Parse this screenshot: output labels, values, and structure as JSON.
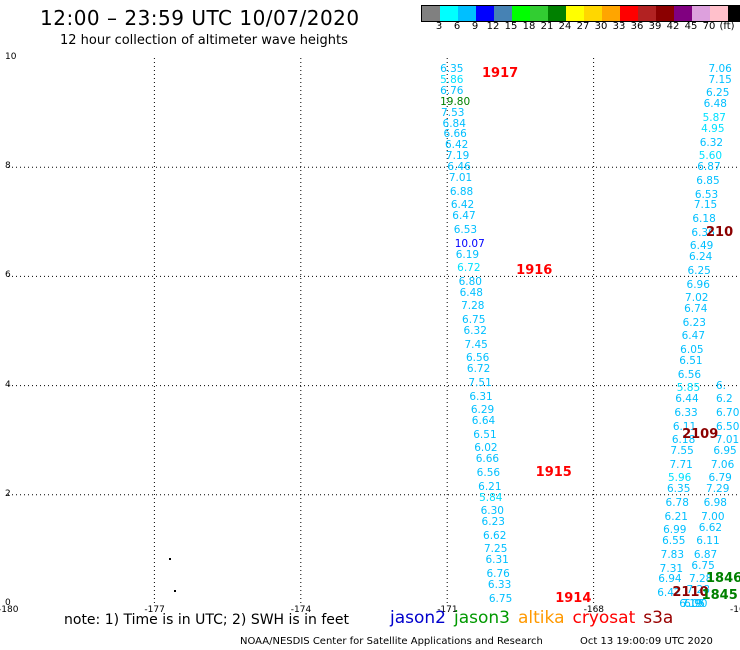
{
  "header": {
    "title": "12:00 – 23:59 UTC 10/07/2020",
    "subtitle": "12 hour collection of altimeter wave heights"
  },
  "colorbar": {
    "swatches": [
      "#808080",
      "#00ffff",
      "#00bfff",
      "#0000ff",
      "#4682b4",
      "#00ff00",
      "#32cd32",
      "#008000",
      "#ffff00",
      "#ffd700",
      "#ffa500",
      "#ff0000",
      "#b22222",
      "#8b0000",
      "#800080",
      "#dda0dd",
      "#ffc0cb",
      "#000000"
    ],
    "labels": [
      "3",
      "6",
      "9",
      "12",
      "15",
      "18",
      "21",
      "24",
      "27",
      "30",
      "33",
      "36",
      "39",
      "42",
      "45",
      "70",
      "(ft)"
    ]
  },
  "axes": {
    "x_ticks": [
      "-180",
      "-177",
      "-174",
      "-171",
      "-168",
      "-16"
    ],
    "y_ticks": [
      "10",
      "8",
      "6",
      "4",
      "2",
      "0"
    ]
  },
  "footer": {
    "note": "note:  1) Time is in UTC;  2) SWH is in feet",
    "satellites": [
      {
        "name": "jason2",
        "color": "#0000cc"
      },
      {
        "name": "jason3",
        "color": "#009900"
      },
      {
        "name": "altika",
        "color": "#ff9900"
      },
      {
        "name": "cryosat",
        "color": "#ff0000"
      },
      {
        "name": "s3a",
        "color": "#990000"
      }
    ],
    "credit": "NOAA/NESDIS Center for Satellite Applications and Research",
    "datestamp": "Oct 13 19:00:09 UTC 2020"
  },
  "colors": {
    "cyan": "#00bfff",
    "light_cyan": "#00e0ff",
    "green": "#008000",
    "blue": "#0000ff",
    "red": "#ff0000",
    "dark_red": "#8b0000"
  },
  "chart_data": {
    "type": "scatter",
    "x_label": "",
    "y_label": "",
    "xlim": [
      -180,
      -165
    ],
    "ylim": [
      0,
      10
    ],
    "tracks": [
      {
        "name": "track-1",
        "points": [
          {
            "lon": -170.9,
            "lat": 9.8,
            "v": "6.35",
            "c": "cyan"
          },
          {
            "lon": -170.9,
            "lat": 9.6,
            "v": "5.86",
            "c": "light_cyan"
          },
          {
            "lon": -170.9,
            "lat": 9.4,
            "v": "6.76",
            "c": "cyan"
          },
          {
            "lon": -170.9,
            "lat": 9.2,
            "v": "19.80",
            "c": "green"
          },
          {
            "lon": -170.88,
            "lat": 9.0,
            "v": "7.53",
            "c": "cyan"
          },
          {
            "lon": -170.85,
            "lat": 8.8,
            "v": "6.84",
            "c": "cyan"
          },
          {
            "lon": -170.83,
            "lat": 8.6,
            "v": "6.66",
            "c": "cyan"
          },
          {
            "lon": -170.8,
            "lat": 8.4,
            "v": "6.42",
            "c": "cyan"
          },
          {
            "lon": -170.78,
            "lat": 8.2,
            "v": "7.19",
            "c": "cyan"
          },
          {
            "lon": -170.75,
            "lat": 8.0,
            "v": "6.46",
            "c": "cyan"
          },
          {
            "lon": -170.72,
            "lat": 7.8,
            "v": "7.01",
            "c": "cyan"
          },
          {
            "lon": -170.7,
            "lat": 7.55,
            "v": "6.88",
            "c": "cyan"
          },
          {
            "lon": -170.68,
            "lat": 7.3,
            "v": "6.42",
            "c": "cyan"
          },
          {
            "lon": -170.65,
            "lat": 7.1,
            "v": "6.47",
            "c": "cyan"
          },
          {
            "lon": -170.62,
            "lat": 6.85,
            "v": "6.53",
            "c": "cyan"
          },
          {
            "lon": -170.6,
            "lat": 6.6,
            "v": "10.07",
            "c": "blue"
          },
          {
            "lon": -170.58,
            "lat": 6.4,
            "v": "6.19",
            "c": "cyan"
          },
          {
            "lon": -170.55,
            "lat": 6.15,
            "v": "6.72",
            "c": "light_cyan"
          },
          {
            "lon": -170.52,
            "lat": 5.9,
            "v": "6.80",
            "c": "cyan"
          },
          {
            "lon": -170.5,
            "lat": 5.7,
            "v": "6.48",
            "c": "cyan"
          },
          {
            "lon": -170.47,
            "lat": 5.45,
            "v": "7.28",
            "c": "cyan"
          },
          {
            "lon": -170.45,
            "lat": 5.2,
            "v": "6.75",
            "c": "cyan"
          },
          {
            "lon": -170.42,
            "lat": 5.0,
            "v": "6.32",
            "c": "cyan"
          },
          {
            "lon": -170.4,
            "lat": 4.75,
            "v": "7.45",
            "c": "cyan"
          },
          {
            "lon": -170.37,
            "lat": 4.5,
            "v": "6.56",
            "c": "cyan"
          },
          {
            "lon": -170.35,
            "lat": 4.3,
            "v": "6.72",
            "c": "cyan"
          },
          {
            "lon": -170.32,
            "lat": 4.05,
            "v": "7.51",
            "c": "cyan"
          },
          {
            "lon": -170.3,
            "lat": 3.8,
            "v": "6.31",
            "c": "cyan"
          },
          {
            "lon": -170.27,
            "lat": 3.55,
            "v": "6.29",
            "c": "cyan"
          },
          {
            "lon": -170.25,
            "lat": 3.35,
            "v": "6.64",
            "c": "cyan"
          },
          {
            "lon": -170.22,
            "lat": 3.1,
            "v": "6.51",
            "c": "cyan"
          },
          {
            "lon": -170.2,
            "lat": 2.85,
            "v": "6.02",
            "c": "cyan"
          },
          {
            "lon": -170.17,
            "lat": 2.65,
            "v": "6.66",
            "c": "cyan"
          },
          {
            "lon": -170.15,
            "lat": 2.4,
            "v": "6.56",
            "c": "cyan"
          },
          {
            "lon": -170.12,
            "lat": 2.15,
            "v": "6.21",
            "c": "cyan"
          },
          {
            "lon": -170.1,
            "lat": 1.95,
            "v": "5.84",
            "c": "light_cyan"
          },
          {
            "lon": -170.07,
            "lat": 1.7,
            "v": "6.30",
            "c": "cyan"
          },
          {
            "lon": -170.05,
            "lat": 1.5,
            "v": "6.23",
            "c": "cyan"
          },
          {
            "lon": -170.02,
            "lat": 1.25,
            "v": "6.62",
            "c": "cyan"
          },
          {
            "lon": -170.0,
            "lat": 1.0,
            "v": "7.25",
            "c": "cyan"
          },
          {
            "lon": -169.97,
            "lat": 0.8,
            "v": "6.31",
            "c": "cyan"
          },
          {
            "lon": -169.95,
            "lat": 0.55,
            "v": "6.76",
            "c": "cyan"
          },
          {
            "lon": -169.92,
            "lat": 0.35,
            "v": "6.33",
            "c": "cyan"
          },
          {
            "lon": -169.9,
            "lat": 0.1,
            "v": "6.75",
            "c": "cyan"
          }
        ]
      },
      {
        "name": "track-2",
        "points": [
          {
            "lon": -165.4,
            "lat": 9.8,
            "v": "7.06",
            "c": "cyan"
          },
          {
            "lon": -165.4,
            "lat": 9.6,
            "v": "7.15",
            "c": "cyan"
          },
          {
            "lon": -165.45,
            "lat": 9.35,
            "v": "6.25",
            "c": "cyan"
          },
          {
            "lon": -165.5,
            "lat": 9.15,
            "v": "6.48",
            "c": "cyan"
          },
          {
            "lon": -165.52,
            "lat": 8.9,
            "v": "5.87",
            "c": "light_cyan"
          },
          {
            "lon": -165.55,
            "lat": 8.7,
            "v": "4.95",
            "c": "light_cyan"
          },
          {
            "lon": -165.58,
            "lat": 8.45,
            "v": "6.32",
            "c": "cyan"
          },
          {
            "lon": -165.6,
            "lat": 8.2,
            "v": "5.60",
            "c": "light_cyan"
          },
          {
            "lon": -165.63,
            "lat": 8.0,
            "v": "6.87",
            "c": "cyan"
          },
          {
            "lon": -165.65,
            "lat": 7.75,
            "v": "6.85",
            "c": "cyan"
          },
          {
            "lon": -165.68,
            "lat": 7.5,
            "v": "6.53",
            "c": "cyan"
          },
          {
            "lon": -165.7,
            "lat": 7.3,
            "v": "7.15",
            "c": "cyan"
          },
          {
            "lon": -165.73,
            "lat": 7.05,
            "v": "6.18",
            "c": "cyan"
          },
          {
            "lon": -165.75,
            "lat": 6.8,
            "v": "6.36",
            "c": "cyan"
          },
          {
            "lon": -165.78,
            "lat": 6.55,
            "v": "6.49",
            "c": "cyan"
          },
          {
            "lon": -165.8,
            "lat": 6.35,
            "v": "6.24",
            "c": "cyan"
          },
          {
            "lon": -165.83,
            "lat": 6.1,
            "v": "6.25",
            "c": "cyan"
          },
          {
            "lon": -165.85,
            "lat": 5.85,
            "v": "6.96",
            "c": "cyan"
          },
          {
            "lon": -165.88,
            "lat": 5.6,
            "v": "7.02",
            "c": "cyan"
          },
          {
            "lon": -165.9,
            "lat": 5.4,
            "v": "6.74",
            "c": "cyan"
          },
          {
            "lon": -165.93,
            "lat": 5.15,
            "v": "6.23",
            "c": "cyan"
          },
          {
            "lon": -165.95,
            "lat": 4.9,
            "v": "6.47",
            "c": "cyan"
          },
          {
            "lon": -165.98,
            "lat": 4.65,
            "v": "6.05",
            "c": "cyan"
          },
          {
            "lon": -166.0,
            "lat": 4.45,
            "v": "6.51",
            "c": "cyan"
          },
          {
            "lon": -166.03,
            "lat": 4.2,
            "v": "6.56",
            "c": "cyan"
          },
          {
            "lon": -166.05,
            "lat": 3.95,
            "v": "5.85",
            "c": "light_cyan"
          },
          {
            "lon": -166.08,
            "lat": 3.75,
            "v": "6.44",
            "c": "cyan"
          },
          {
            "lon": -166.1,
            "lat": 3.5,
            "v": "6.33",
            "c": "cyan"
          },
          {
            "lon": -166.13,
            "lat": 3.25,
            "v": "6.11",
            "c": "cyan"
          },
          {
            "lon": -166.15,
            "lat": 3.0,
            "v": "6.18",
            "c": "cyan"
          },
          {
            "lon": -166.18,
            "lat": 2.8,
            "v": "7.55",
            "c": "cyan"
          },
          {
            "lon": -166.2,
            "lat": 2.55,
            "v": "7.71",
            "c": "cyan"
          },
          {
            "lon": -166.23,
            "lat": 2.3,
            "v": "5.96",
            "c": "light_cyan"
          },
          {
            "lon": -166.25,
            "lat": 2.1,
            "v": "6.35",
            "c": "cyan"
          },
          {
            "lon": -166.28,
            "lat": 1.85,
            "v": "6.78",
            "c": "cyan"
          },
          {
            "lon": -166.3,
            "lat": 1.6,
            "v": "6.21",
            "c": "cyan"
          },
          {
            "lon": -166.33,
            "lat": 1.35,
            "v": "6.99",
            "c": "cyan"
          },
          {
            "lon": -166.35,
            "lat": 1.15,
            "v": "6.55",
            "c": "cyan"
          },
          {
            "lon": -166.38,
            "lat": 0.9,
            "v": "7.83",
            "c": "cyan"
          },
          {
            "lon": -166.4,
            "lat": 0.65,
            "v": "7.31",
            "c": "cyan"
          },
          {
            "lon": -166.43,
            "lat": 0.45,
            "v": "6.94",
            "c": "cyan"
          },
          {
            "lon": -166.45,
            "lat": 0.2,
            "v": "6.42",
            "c": "cyan"
          }
        ]
      },
      {
        "name": "track-3",
        "points": [
          {
            "lon": -165.05,
            "lat": 4.0,
            "v": "6.",
            "c": "cyan"
          },
          {
            "lon": -165.1,
            "lat": 3.75,
            "v": "6.2",
            "c": "cyan"
          },
          {
            "lon": -165.15,
            "lat": 3.5,
            "v": "6.70",
            "c": "cyan"
          },
          {
            "lon": -165.2,
            "lat": 3.25,
            "v": "6.50",
            "c": "cyan"
          },
          {
            "lon": -165.25,
            "lat": 3.0,
            "v": "7.01",
            "c": "cyan"
          },
          {
            "lon": -165.3,
            "lat": 2.8,
            "v": "6.95",
            "c": "cyan"
          },
          {
            "lon": -165.35,
            "lat": 2.55,
            "v": "7.06",
            "c": "cyan"
          },
          {
            "lon": -165.4,
            "lat": 2.3,
            "v": "6.79",
            "c": "cyan"
          },
          {
            "lon": -165.45,
            "lat": 2.1,
            "v": "7.29",
            "c": "cyan"
          },
          {
            "lon": -165.5,
            "lat": 1.85,
            "v": "6.98",
            "c": "cyan"
          },
          {
            "lon": -165.55,
            "lat": 1.6,
            "v": "7.00",
            "c": "cyan"
          },
          {
            "lon": -165.6,
            "lat": 1.4,
            "v": "6.62",
            "c": "cyan"
          },
          {
            "lon": -165.65,
            "lat": 1.15,
            "v": "6.11",
            "c": "cyan"
          },
          {
            "lon": -165.7,
            "lat": 0.9,
            "v": "6.87",
            "c": "cyan"
          },
          {
            "lon": -165.75,
            "lat": 0.7,
            "v": "6.75",
            "c": "cyan"
          },
          {
            "lon": -165.8,
            "lat": 0.45,
            "v": "7.28",
            "c": "cyan"
          },
          {
            "lon": -165.85,
            "lat": 0.25,
            "v": "7.28",
            "c": "cyan"
          },
          {
            "lon": -165.9,
            "lat": 0.0,
            "v": "6.90",
            "c": "cyan"
          },
          {
            "lon": -165.95,
            "lat": -0.2,
            "v": "7.05",
            "c": "cyan"
          },
          {
            "lon": -166.0,
            "lat": -0.4,
            "v": "6.19",
            "c": "cyan"
          }
        ]
      }
    ],
    "pass_times": [
      {
        "lon": -170.0,
        "lat": 9.7,
        "label": "1917",
        "c": "red"
      },
      {
        "lon": -169.3,
        "lat": 6.1,
        "label": "1916",
        "c": "red"
      },
      {
        "lon": -168.9,
        "lat": 2.4,
        "label": "1915",
        "c": "red"
      },
      {
        "lon": -168.5,
        "lat": 0.1,
        "label": "1914",
        "c": "red"
      },
      {
        "lon": -165.0,
        "lat": 6.8,
        "label": "210",
        "c": "dark_red"
      },
      {
        "lon": -165.9,
        "lat": 3.1,
        "label": "2109",
        "c": "dark_red"
      },
      {
        "lon": -166.1,
        "lat": 0.2,
        "label": "2110",
        "c": "dark_red"
      },
      {
        "lon": -165.3,
        "lat": 0.45,
        "label": "1846",
        "c": "green"
      },
      {
        "lon": -165.5,
        "lat": 0.15,
        "label": "1845",
        "c": "green"
      }
    ],
    "dots": [
      {
        "lon": -176.7,
        "lat": 0.85
      },
      {
        "lon": -176.6,
        "lat": 0.25
      }
    ]
  }
}
